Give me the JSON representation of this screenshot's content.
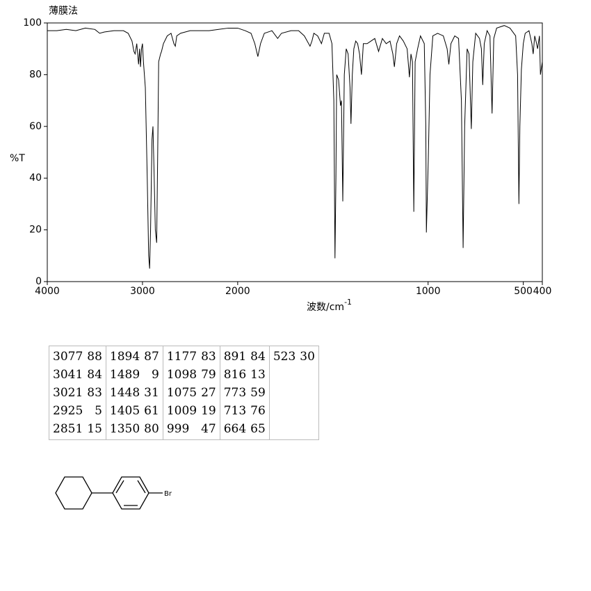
{
  "chart_data": {
    "type": "line",
    "title": "薄膜法",
    "y_label": "%T",
    "x_label": "波数/cm",
    "x_label_superscript": "-1",
    "color": "#000000",
    "xlim": [
      4000,
      400
    ],
    "x_scale_break": 2000,
    "xticks": [
      4000,
      3000,
      2000,
      1000,
      500,
      400
    ],
    "ylim": [
      0,
      100
    ],
    "yticks": [
      0,
      20,
      40,
      60,
      80,
      100
    ],
    "grid": false,
    "x": [
      4000,
      3900,
      3800,
      3700,
      3600,
      3500,
      3450,
      3400,
      3300,
      3200,
      3150,
      3110,
      3090,
      3077,
      3060,
      3041,
      3030,
      3021,
      3010,
      3000,
      2990,
      2970,
      2950,
      2935,
      2925,
      2915,
      2900,
      2890,
      2880,
      2865,
      2851,
      2840,
      2830,
      2810,
      2800,
      2780,
      2740,
      2700,
      2670,
      2655,
      2640,
      2600,
      2500,
      2400,
      2300,
      2200,
      2100,
      2000,
      1960,
      1930,
      1910,
      1894,
      1880,
      1860,
      1820,
      1790,
      1770,
      1720,
      1680,
      1650,
      1620,
      1610,
      1600,
      1580,
      1560,
      1545,
      1520,
      1505,
      1495,
      1489,
      1484,
      1480,
      1470,
      1460,
      1455,
      1448,
      1440,
      1430,
      1420,
      1410,
      1405,
      1398,
      1390,
      1380,
      1370,
      1360,
      1350,
      1340,
      1320,
      1300,
      1280,
      1260,
      1240,
      1220,
      1200,
      1185,
      1177,
      1165,
      1150,
      1130,
      1110,
      1098,
      1090,
      1082,
      1075,
      1068,
      1055,
      1040,
      1020,
      1012,
      1009,
      1005,
      999,
      990,
      975,
      950,
      920,
      900,
      891,
      880,
      860,
      840,
      825,
      816,
      808,
      795,
      785,
      773,
      765,
      750,
      730,
      720,
      713,
      705,
      690,
      675,
      664,
      655,
      640,
      600,
      570,
      540,
      530,
      523,
      518,
      510,
      500,
      490,
      470,
      455,
      448,
      440,
      430,
      425,
      415,
      410,
      400
    ],
    "values": [
      97,
      97,
      97.5,
      97,
      98,
      97.5,
      96,
      96.5,
      97,
      97,
      96,
      93,
      89,
      88,
      92,
      84,
      90,
      83,
      90,
      92,
      85,
      75,
      40,
      10,
      5,
      20,
      55,
      60,
      45,
      20,
      15,
      50,
      85,
      88,
      89,
      92,
      95,
      96,
      92,
      91,
      95,
      96,
      97,
      97,
      97,
      97.5,
      98,
      98,
      97,
      96,
      92,
      87,
      92,
      96,
      97,
      94,
      96,
      97,
      97,
      95,
      91,
      93,
      96,
      95,
      92,
      96,
      96,
      92,
      70,
      9,
      40,
      80,
      78,
      68,
      70,
      31,
      80,
      90,
      88,
      75,
      61,
      80,
      90,
      93,
      92,
      88,
      80,
      92,
      92,
      93,
      94,
      89,
      94,
      92,
      93,
      88,
      83,
      92,
      95,
      93,
      90,
      79,
      88,
      85,
      27,
      85,
      90,
      95,
      92,
      60,
      19,
      30,
      47,
      80,
      95,
      96,
      95,
      90,
      84,
      92,
      95,
      94,
      70,
      13,
      60,
      90,
      88,
      59,
      85,
      96,
      94,
      90,
      76,
      92,
      97,
      95,
      65,
      94,
      98,
      99,
      98,
      95,
      80,
      30,
      60,
      82,
      92,
      96,
      97,
      92,
      88,
      95,
      92,
      90,
      95,
      80,
      85
    ]
  },
  "peaks": [
    [
      3077,
      88
    ],
    [
      3041,
      84
    ],
    [
      3021,
      83
    ],
    [
      2925,
      5
    ],
    [
      2851,
      15
    ],
    [
      1894,
      87
    ],
    [
      1489,
      9
    ],
    [
      1448,
      31
    ],
    [
      1405,
      61
    ],
    [
      1350,
      80
    ],
    [
      1177,
      83
    ],
    [
      1098,
      79
    ],
    [
      1075,
      27
    ],
    [
      1009,
      19
    ],
    [
      999,
      47
    ],
    [
      891,
      84
    ],
    [
      816,
      13
    ],
    [
      773,
      59
    ],
    [
      713,
      76
    ],
    [
      664,
      65
    ],
    [
      523,
      30
    ]
  ],
  "structure_label": "Br"
}
